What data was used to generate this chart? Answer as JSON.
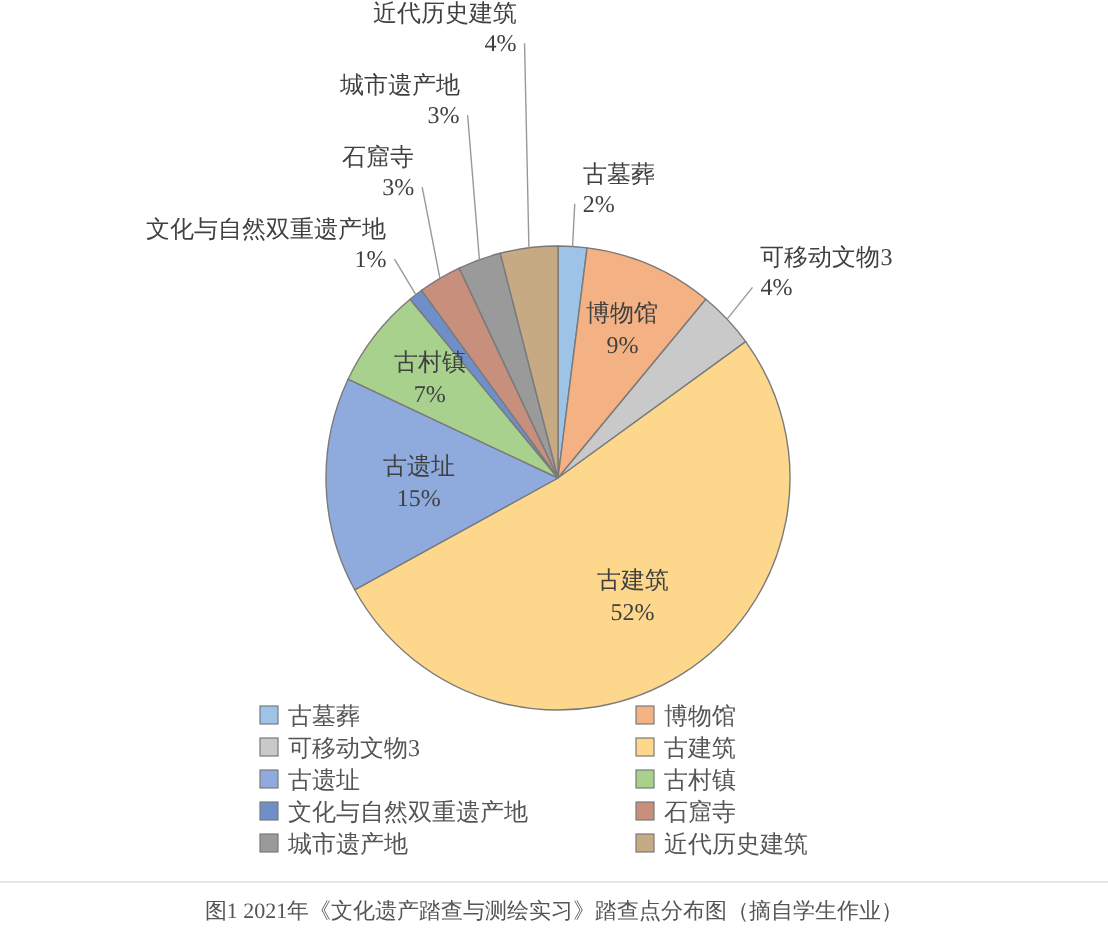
{
  "chart_data": {
    "type": "pie",
    "categories": [
      "古墓葬",
      "博物馆",
      "可移动文物3",
      "古建筑",
      "古遗址",
      "古村镇",
      "文化与自然双重遗产地",
      "石窟寺",
      "城市遗产地",
      "近代历史建筑"
    ],
    "values": [
      2,
      9,
      4,
      52,
      15,
      7,
      1,
      3,
      3,
      4
    ],
    "colors": [
      "#9dc3e6",
      "#f4b183",
      "#c9c9c9",
      "#fdd88c",
      "#8faadc",
      "#a9d18e",
      "#6f8fc9",
      "#c8907c",
      "#9a9a9a",
      "#c6aa83"
    ],
    "value_labels": [
      "2%",
      "9%",
      "4%",
      "52%",
      "15%",
      "7%",
      "1%",
      "3%",
      "3%",
      "4%"
    ],
    "legend": "bottom",
    "annotations": [
      "图1  2021年《文化遗产踏查与测绘实习》踏查点分布图（摘自学生作业）"
    ]
  }
}
